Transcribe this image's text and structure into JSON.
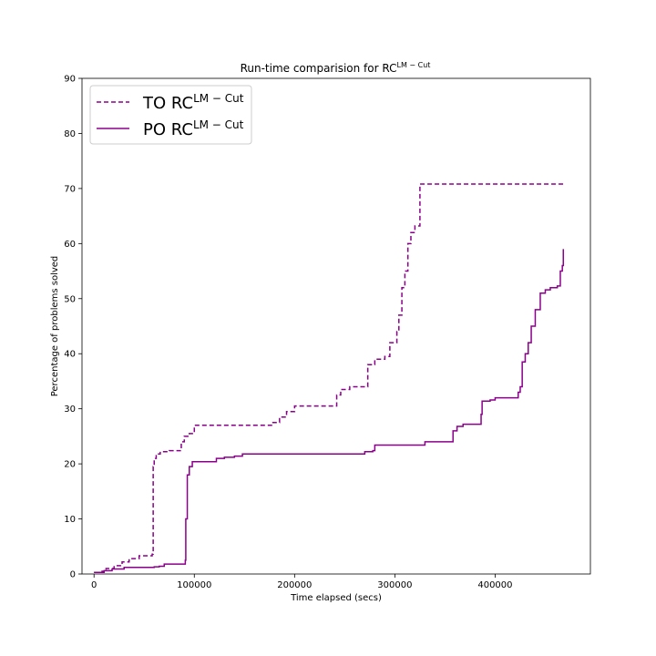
{
  "chart_data": {
    "type": "line",
    "title_main": "Run-time comparision for RC",
    "title_sup": "LM − Cut",
    "xlabel": "Time elapsed (secs)",
    "ylabel": "Percentage of problems solved",
    "xlim": [
      -12000,
      495000
    ],
    "ylim": [
      0,
      90
    ],
    "x_ticks": [
      0,
      100000,
      200000,
      300000,
      400000
    ],
    "y_ticks": [
      0,
      10,
      20,
      30,
      40,
      50,
      60,
      70,
      80,
      90
    ],
    "grid": false,
    "legend_position": "top-left",
    "series": [
      {
        "name_main": "TO RC",
        "name_sup": "LM − Cut",
        "color": "#8b008b",
        "style": "dashed",
        "points": [
          [
            0,
            0.3
          ],
          [
            8000,
            0.5
          ],
          [
            12000,
            1.0
          ],
          [
            20000,
            1.5
          ],
          [
            28000,
            2.2
          ],
          [
            35000,
            2.8
          ],
          [
            45000,
            3.3
          ],
          [
            58000,
            3.6
          ],
          [
            59000,
            19.5
          ],
          [
            60000,
            21.0
          ],
          [
            62000,
            21.8
          ],
          [
            66000,
            22.2
          ],
          [
            75000,
            22.4
          ],
          [
            85000,
            22.4
          ],
          [
            87000,
            24.0
          ],
          [
            90000,
            25.0
          ],
          [
            95000,
            25.5
          ],
          [
            100000,
            27.0
          ],
          [
            175000,
            27.0
          ],
          [
            177000,
            27.5
          ],
          [
            185000,
            28.5
          ],
          [
            192000,
            29.5
          ],
          [
            200000,
            30.5
          ],
          [
            240000,
            30.5
          ],
          [
            242000,
            32.5
          ],
          [
            246000,
            33.5
          ],
          [
            255000,
            34.0
          ],
          [
            272000,
            34.0
          ],
          [
            273000,
            38.0
          ],
          [
            280000,
            39.0
          ],
          [
            290000,
            39.5
          ],
          [
            295000,
            42.0
          ],
          [
            302000,
            44.0
          ],
          [
            304000,
            47.0
          ],
          [
            307000,
            52.0
          ],
          [
            310000,
            55.0
          ],
          [
            313000,
            60.0
          ],
          [
            316000,
            62.0
          ],
          [
            320000,
            63.2
          ],
          [
            324000,
            63.2
          ],
          [
            325000,
            70.8
          ],
          [
            468000,
            70.8
          ]
        ]
      },
      {
        "name_main": "PO RC",
        "name_sup": "LM − Cut",
        "color": "#8b008b",
        "style": "solid",
        "points": [
          [
            0,
            0.3
          ],
          [
            10000,
            0.6
          ],
          [
            18000,
            0.9
          ],
          [
            30000,
            1.2
          ],
          [
            60000,
            1.3
          ],
          [
            65000,
            1.4
          ],
          [
            70000,
            1.8
          ],
          [
            90000,
            1.8
          ],
          [
            91000,
            2.5
          ],
          [
            91500,
            10.0
          ],
          [
            93000,
            18.0
          ],
          [
            95000,
            19.5
          ],
          [
            98000,
            20.4
          ],
          [
            120000,
            20.4
          ],
          [
            122000,
            21.0
          ],
          [
            130000,
            21.2
          ],
          [
            140000,
            21.4
          ],
          [
            148000,
            21.8
          ],
          [
            265000,
            21.8
          ],
          [
            270000,
            22.2
          ],
          [
            278000,
            22.4
          ],
          [
            280000,
            23.4
          ],
          [
            327000,
            23.4
          ],
          [
            330000,
            24.0
          ],
          [
            355000,
            24.0
          ],
          [
            358000,
            26.0
          ],
          [
            362000,
            26.8
          ],
          [
            368000,
            27.2
          ],
          [
            385000,
            27.2
          ],
          [
            386000,
            29.0
          ],
          [
            387000,
            31.4
          ],
          [
            395000,
            31.6
          ],
          [
            400000,
            32.0
          ],
          [
            420000,
            32.0
          ],
          [
            423000,
            33.0
          ],
          [
            425000,
            34.0
          ],
          [
            427000,
            38.5
          ],
          [
            430000,
            40.0
          ],
          [
            433000,
            42.0
          ],
          [
            436000,
            45.0
          ],
          [
            440000,
            48.0
          ],
          [
            445000,
            51.0
          ],
          [
            450000,
            51.6
          ],
          [
            455000,
            52.0
          ],
          [
            462000,
            52.3
          ],
          [
            465000,
            55.0
          ],
          [
            467000,
            56.0
          ],
          [
            468000,
            59.0
          ]
        ]
      }
    ]
  }
}
